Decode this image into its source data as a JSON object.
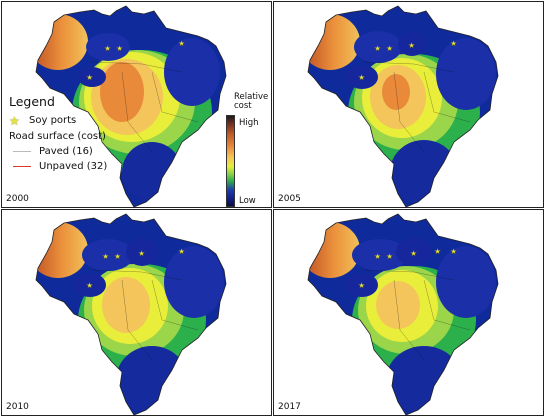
{
  "panels": [
    {
      "year": "2000"
    },
    {
      "year": "2005"
    },
    {
      "year": "2010"
    },
    {
      "year": "2017"
    }
  ],
  "legend": {
    "title": "Legend",
    "soy_ports": "Soy ports",
    "road_surface": "Road surface (cost)",
    "paved": "Paved (16)",
    "unpaved": "Unpaved (32)"
  },
  "colorbar": {
    "title_line1": "Relative",
    "title_line2": "cost",
    "high": "High",
    "low": "Low"
  },
  "colors": {
    "paved_road": "#bbbbbb",
    "unpaved_road": "#e03a2a",
    "port_star": "#e6e63a"
  }
}
